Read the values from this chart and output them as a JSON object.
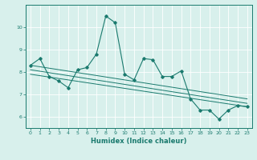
{
  "title": "",
  "xlabel": "Humidex (Indice chaleur)",
  "ylabel": "",
  "bg_color": "#d8f0ec",
  "line_color": "#1a7a6e",
  "xlim": [
    -0.5,
    23.5
  ],
  "ylim": [
    5.5,
    11.0
  ],
  "yticks": [
    6,
    7,
    8,
    9,
    10
  ],
  "xticks": [
    0,
    1,
    2,
    3,
    4,
    5,
    6,
    7,
    8,
    9,
    10,
    11,
    12,
    13,
    14,
    15,
    16,
    17,
    18,
    19,
    20,
    21,
    22,
    23
  ],
  "series1_x": [
    0,
    1,
    2,
    3,
    4,
    5,
    6,
    7,
    8,
    9,
    10,
    11,
    12,
    13,
    14,
    15,
    16,
    17,
    18,
    19,
    20,
    21,
    22,
    23
  ],
  "series1_y": [
    8.3,
    8.6,
    7.8,
    7.6,
    7.3,
    8.1,
    8.2,
    8.8,
    10.5,
    10.2,
    7.9,
    7.65,
    8.6,
    8.55,
    7.8,
    7.8,
    8.05,
    6.8,
    6.3,
    6.3,
    5.9,
    6.3,
    6.5,
    6.45
  ],
  "trend1_x": [
    0,
    23
  ],
  "trend1_y": [
    8.3,
    6.8
  ],
  "trend2_x": [
    0,
    23
  ],
  "trend2_y": [
    8.1,
    6.6
  ],
  "trend3_x": [
    0,
    23
  ],
  "trend3_y": [
    7.9,
    6.45
  ]
}
